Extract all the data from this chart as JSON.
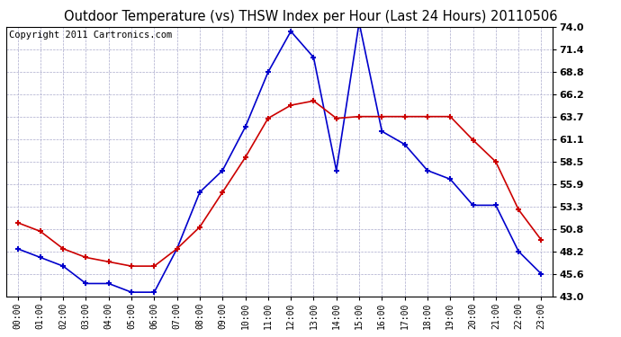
{
  "title": "Outdoor Temperature (vs) THSW Index per Hour (Last 24 Hours) 20110506",
  "copyright": "Copyright 2011 Cartronics.com",
  "hours": [
    "00:00",
    "01:00",
    "02:00",
    "03:00",
    "04:00",
    "05:00",
    "06:00",
    "07:00",
    "08:00",
    "09:00",
    "10:00",
    "11:00",
    "12:00",
    "13:00",
    "14:00",
    "15:00",
    "16:00",
    "17:00",
    "18:00",
    "19:00",
    "20:00",
    "21:00",
    "22:00",
    "23:00"
  ],
  "thsw": [
    48.5,
    47.5,
    46.5,
    44.5,
    44.5,
    43.5,
    43.5,
    48.5,
    55.0,
    57.5,
    62.5,
    68.8,
    73.5,
    70.5,
    57.5,
    74.5,
    62.0,
    60.5,
    57.5,
    56.5,
    53.5,
    53.5,
    48.2,
    45.6
  ],
  "outdoor_temp": [
    51.5,
    50.5,
    48.5,
    47.5,
    47.0,
    46.5,
    46.5,
    48.5,
    51.0,
    55.0,
    59.0,
    63.5,
    65.0,
    65.5,
    63.5,
    63.7,
    63.7,
    63.7,
    63.7,
    63.7,
    61.0,
    58.5,
    53.0,
    49.5
  ],
  "yticks": [
    43.0,
    45.6,
    48.2,
    50.8,
    53.3,
    55.9,
    58.5,
    61.1,
    63.7,
    66.2,
    68.8,
    71.4,
    74.0
  ],
  "ylim": [
    43.0,
    74.0
  ],
  "thsw_color": "#0000CC",
  "temp_color": "#CC0000",
  "bg_color": "#FFFFFF",
  "plot_bg_color": "#FFFFFF",
  "grid_color": "#AAAACC",
  "title_fontsize": 10.5,
  "copyright_fontsize": 7.5
}
